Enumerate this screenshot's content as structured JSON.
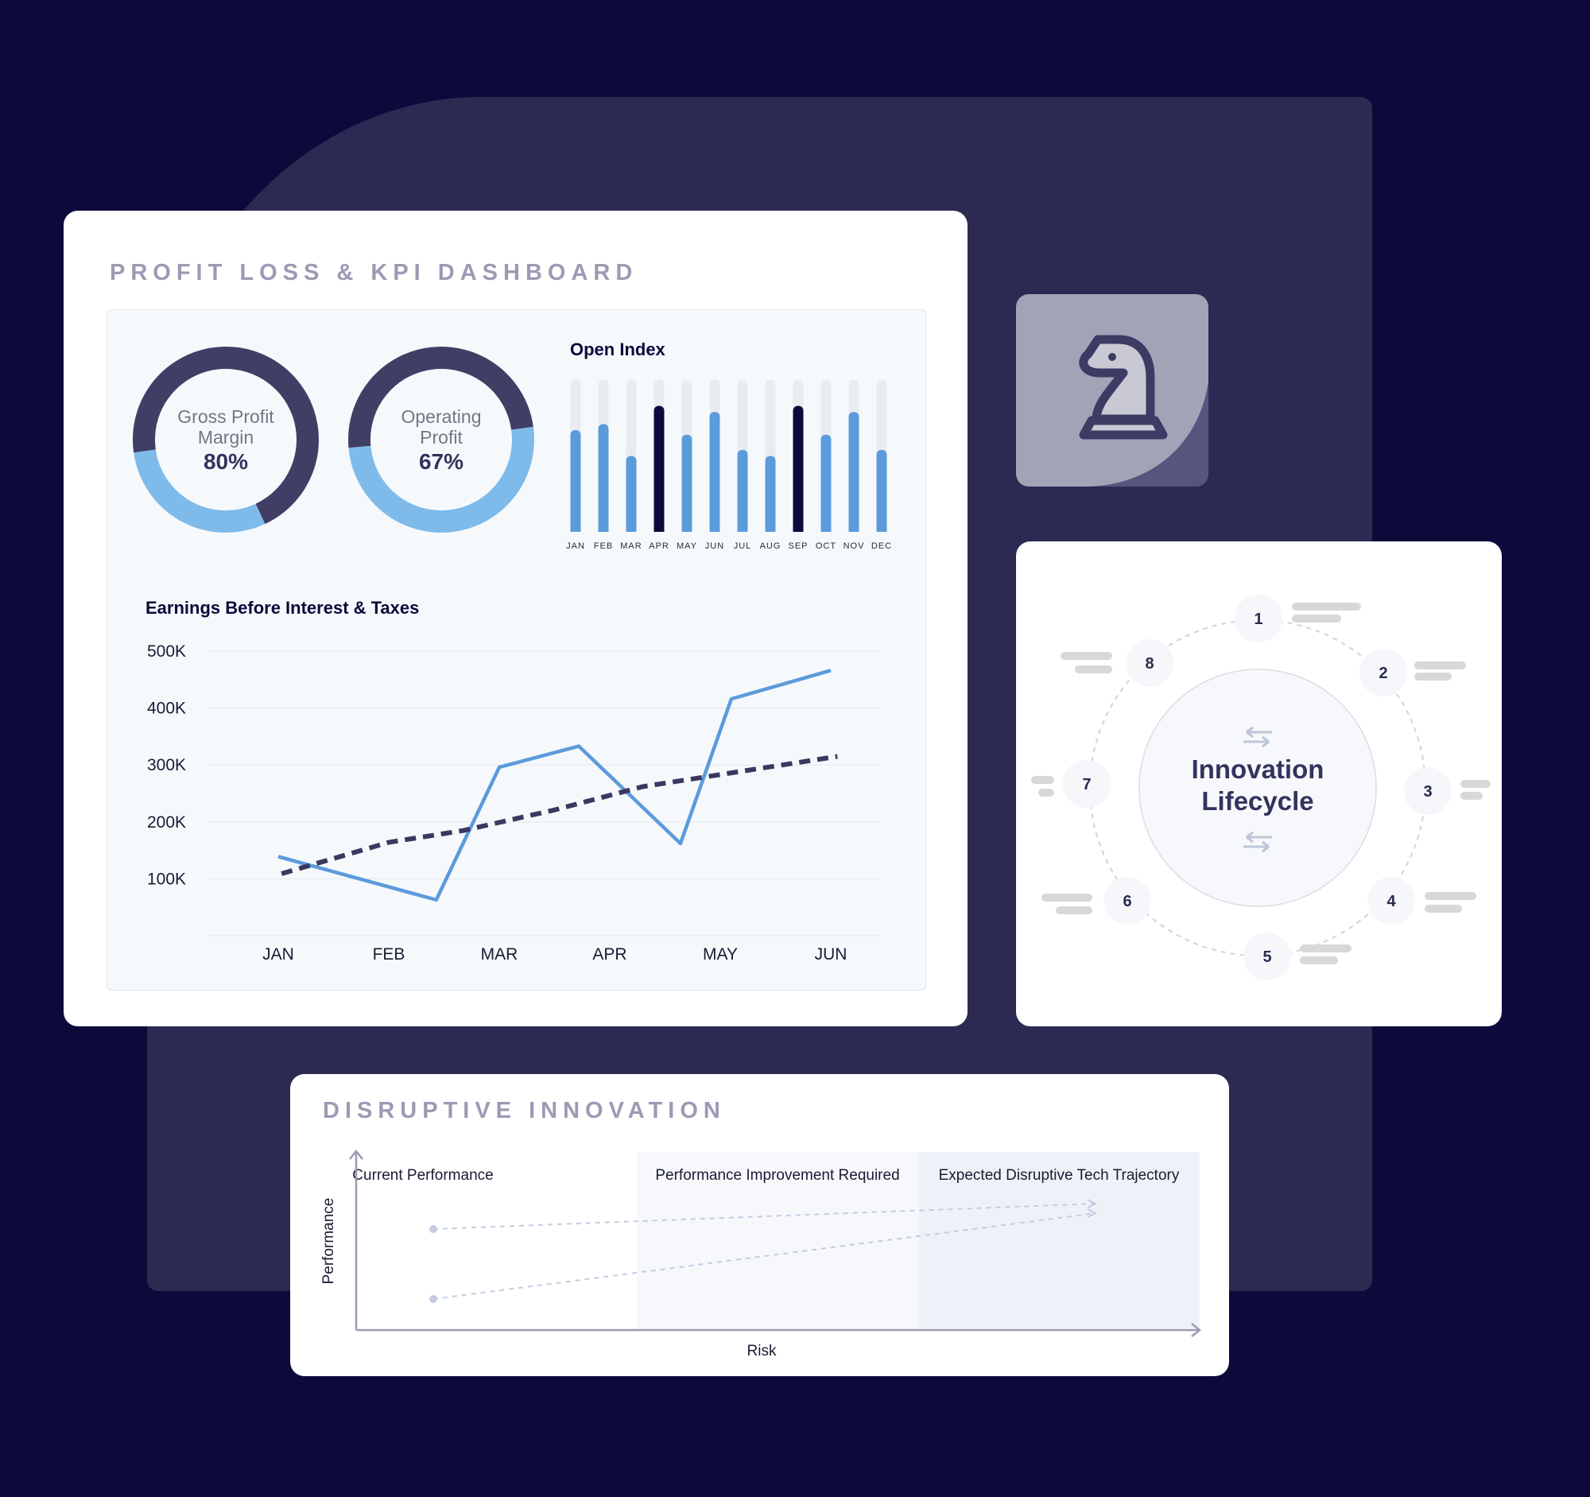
{
  "dashboard": {
    "title": "PROFIT LOSS & KPI DASHBOARD",
    "donuts": [
      {
        "label_line1": "Gross Profit",
        "label_line2": "Margin",
        "value": "80%"
      },
      {
        "label_line1": "Operating",
        "label_line2": "Profit",
        "value": "67%"
      }
    ]
  },
  "colors": {
    "background": "#0c0a3b",
    "panel": "#2c2952",
    "accent_blue": "#5b9bdc",
    "light_blue": "#7fbbea",
    "dark_navy": "#0c0a3b",
    "ring_dark": "#413e66",
    "dashed_line": "#3b3860"
  },
  "chart_data": [
    {
      "type": "bar",
      "title": "Open Index",
      "categories": [
        "JAN",
        "FEB",
        "MAR",
        "APR",
        "MAY",
        "JUN",
        "JUL",
        "AUG",
        "SEP",
        "OCT",
        "NOV",
        "DEC"
      ],
      "values": [
        0.67,
        0.71,
        0.5,
        0.83,
        0.64,
        0.79,
        0.54,
        0.5,
        0.83,
        0.64,
        0.79,
        0.54
      ],
      "highlighted": [
        "APR",
        "SEP"
      ],
      "ylim": [
        0,
        1
      ]
    },
    {
      "type": "line",
      "title": "Earnings Before Interest & Taxes",
      "x_tick_labels": [
        "JAN",
        "FEB",
        "MAR",
        "APR",
        "MAY",
        "JUN"
      ],
      "y_tick_labels": [
        "500K",
        "400K",
        "300K",
        "200K",
        "100K"
      ],
      "y_ticks": [
        500000,
        400000,
        300000,
        200000,
        100000
      ],
      "ylim": [
        0,
        500000
      ],
      "grid": true,
      "series": [
        {
          "style": "solid",
          "x": [
            0,
            1.43,
            2.0,
            2.72,
            3.64,
            4.1,
            5.0
          ],
          "y": [
            139000,
            63000,
            296000,
            333000,
            162000,
            416000,
            466000
          ]
        },
        {
          "style": "dashed",
          "x": [
            0.03,
            1.0,
            1.68,
            2.5,
            3.3,
            5.06
          ],
          "y": [
            109000,
            164000,
            185000,
            221000,
            262000,
            315000
          ]
        }
      ]
    }
  ],
  "knight_card": {
    "icon": "chess-knight-icon"
  },
  "lifecycle": {
    "title_line1": "Innovation",
    "title_line2": "Lifecycle",
    "icon": "swap-arrows-icon",
    "nodes": [
      "1",
      "2",
      "3",
      "4",
      "5",
      "6",
      "7",
      "8"
    ]
  },
  "disruptive": {
    "title": "DISRUPTIVE INNOVATION",
    "columns": [
      "Current Performance",
      "Performance Improvement Required",
      "Expected Disruptive Tech Trajectory"
    ],
    "y_axis_label": "Performance",
    "x_axis_label": "Risk"
  }
}
